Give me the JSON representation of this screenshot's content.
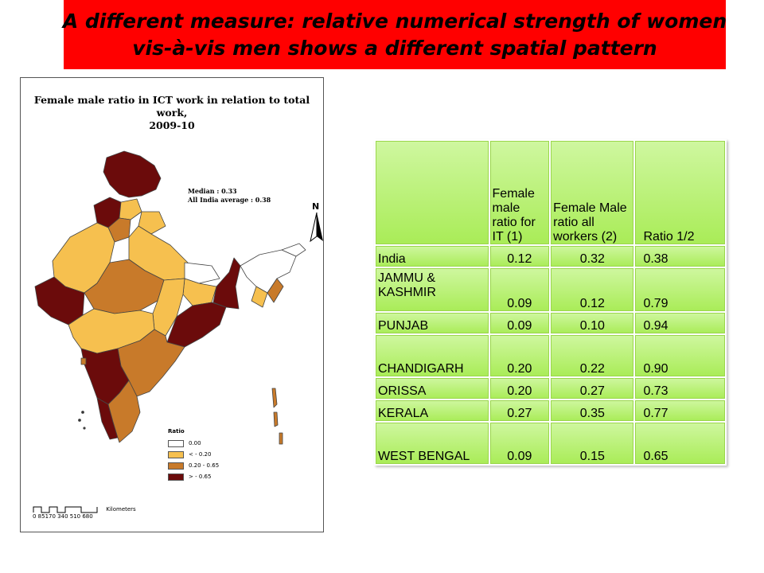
{
  "header": {
    "line1": "A different measure: relative numerical strength of women",
    "line2": "vis-à-vis men shows a different spatial pattern",
    "background": "#ff0000"
  },
  "map": {
    "title_line1": "Female male ratio in ICT work in relation to total work,",
    "title_line2": "2009-10",
    "median": "Median : 0.33",
    "average": "All India average : 0.38",
    "north": "N",
    "legend": {
      "title": "Ratio",
      "items": [
        {
          "label": "0.00",
          "color": "#ffffff"
        },
        {
          "label": "<     - 0.20",
          "color": "#f6c04f"
        },
        {
          "label": "0.20 - 0.65",
          "color": "#c87a2a"
        },
        {
          "label": ">     - 0.65",
          "color": "#6b0b0b"
        }
      ]
    },
    "scale": {
      "unit": "Kilometers",
      "ticks": "0  85170  340  510  680"
    }
  },
  "table": {
    "headers": [
      "",
      "Female male ratio for IT (1)",
      "Female Male ratio all workers (2)",
      "Ratio 1/2"
    ],
    "rows": [
      {
        "state": "India",
        "it": "0.12",
        "all": "0.32",
        "ratio": "0.38"
      },
      {
        "state": "JAMMU & KASHMIR",
        "it": "0.09",
        "all": "0.12",
        "ratio": "0.79"
      },
      {
        "state": "PUNJAB",
        "it": "0.09",
        "all": "0.10",
        "ratio": "0.94"
      },
      {
        "state": "CHANDIGARH",
        "it": "0.20",
        "all": "0.22",
        "ratio": "0.90"
      },
      {
        "state": "ORISSA",
        "it": "0.20",
        "all": "0.27",
        "ratio": "0.73"
      },
      {
        "state": "KERALA",
        "it": "0.27",
        "all": "0.35",
        "ratio": "0.77"
      },
      {
        "state": "WEST BENGAL",
        "it": "0.09",
        "all": "0.15",
        "ratio": "0.65"
      }
    ]
  }
}
